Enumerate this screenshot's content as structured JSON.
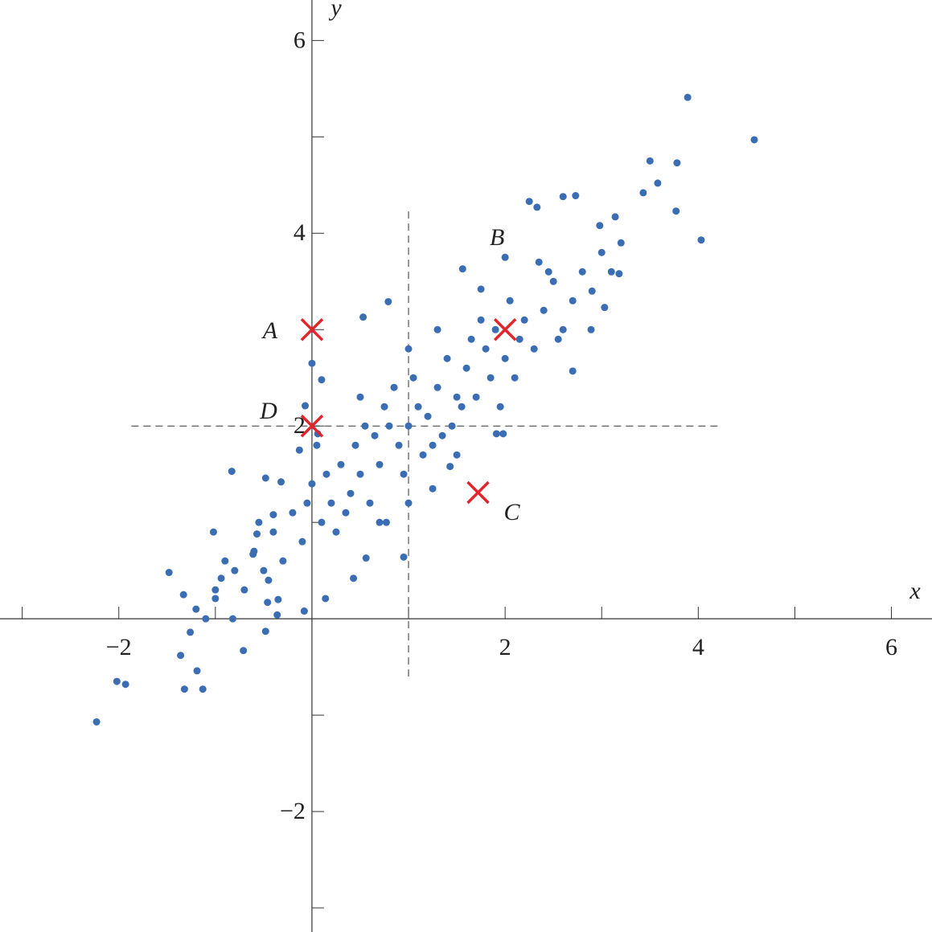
{
  "chart_data": {
    "type": "scatter",
    "x_label": "x",
    "y_label": "y",
    "xlim": [
      -3.23,
      6.42
    ],
    "ylim": [
      -3.25,
      6.42
    ],
    "xticks": [
      {
        "value": -2,
        "label": "−2"
      },
      2,
      4,
      6
    ],
    "xminor_ticks": [
      -3,
      -1,
      1,
      3,
      5
    ],
    "yticks": [
      {
        "value": -2,
        "label": "−2"
      },
      2,
      4,
      6
    ],
    "yminor_ticks": [
      -3,
      -1,
      1,
      3,
      5
    ],
    "color": "#3b6db3",
    "x": [
      -2.23,
      -2.02,
      -1.93,
      -1.32,
      -1.13,
      -1.36,
      -1.19,
      -1.26,
      -1.48,
      -1.33,
      -1.02,
      -0.83,
      -0.71,
      3.89,
      4.58,
      4.03,
      3.5,
      3.78,
      3.77,
      3.58,
      3.43,
      3.14,
      2.98,
      2.73,
      2.6,
      2.25,
      2.33,
      0.79,
      0.53,
      0,
      0.1,
      0.95,
      0.14,
      -0.08,
      2.7,
      2.89,
      1.56,
      2,
      1.75,
      3.18,
      3.03,
      1.91,
      1.98,
      1.43,
      1.25,
      0.77,
      0.56,
      0.43,
      -0.46,
      -0.36,
      -0.48,
      -0.82,
      -1,
      -0.94,
      -0.61,
      -0.57,
      -0.4,
      -0.32,
      -0.48,
      -0.13,
      -0.07,
      0.06,
      1,
      1.1,
      0.9,
      1.2,
      0.8,
      1.3,
      0.7,
      1.5,
      0.5,
      1.6,
      0.4,
      1.8,
      0.2,
      2.0,
      0.1,
      2.2,
      -0.1,
      2.4,
      -0.3,
      2.5,
      -0.5,
      2.7,
      -0.7,
      1.4,
      0.6,
      1.7,
      0.3,
      1.9,
      0.0,
      2.1,
      -0.2,
      2.3,
      -0.4,
      2.6,
      -0.6,
      2.8,
      -0.8,
      3.0,
      -1.0,
      1.05,
      0.95,
      1.25,
      0.75,
      1.45,
      0.55,
      1.65,
      0.35,
      1.85,
      0.15,
      2.05,
      -0.05,
      2.15,
      0.45,
      1.55,
      0.65,
      1.35,
      0.85,
      1.15,
      1.75,
      0.25,
      2.45,
      -0.45,
      3.2,
      -1.2,
      2.9,
      -0.9,
      1.0,
      1.0,
      0.5,
      1.5,
      2.35,
      -0.35,
      3.1,
      -1.1,
      1.95,
      0.05,
      2.55,
      -0.55,
      1.3,
      0.7
    ],
    "values": [
      -1.07,
      -0.65,
      -0.68,
      -0.73,
      -0.73,
      -0.38,
      -0.54,
      -0.14,
      0.48,
      0.25,
      0.9,
      1.53,
      -0.33,
      5.41,
      4.97,
      3.93,
      4.75,
      4.73,
      4.23,
      4.52,
      4.42,
      4.17,
      4.08,
      4.39,
      4.38,
      4.33,
      4.27,
      3.29,
      3.13,
      2.65,
      2.48,
      0.64,
      0.21,
      0.08,
      2.57,
      3.0,
      3.63,
      3.75,
      3.42,
      3.58,
      3.23,
      1.92,
      1.92,
      1.58,
      1.35,
      1.0,
      0.63,
      0.42,
      0.17,
      0.04,
      -0.13,
      0,
      0.21,
      0.42,
      0.67,
      0.88,
      1.08,
      1.42,
      1.46,
      1.75,
      2.21,
      1.92,
      2,
      2.2,
      1.8,
      2.1,
      2.0,
      2.4,
      1.6,
      2.3,
      1.5,
      2.6,
      1.3,
      2.8,
      1.2,
      2.7,
      1.0,
      3.1,
      0.8,
      3.2,
      0.6,
      3.5,
      0.5,
      3.3,
      0.3,
      2.7,
      1.2,
      2.3,
      1.6,
      3.0,
      1.4,
      2.5,
      1.1,
      2.8,
      0.9,
      3.0,
      0.7,
      3.6,
      0.5,
      3.8,
      0.3,
      2.5,
      1.5,
      1.8,
      2.2,
      2.0,
      2.0,
      2.9,
      1.1,
      2.5,
      1.5,
      3.3,
      1.2,
      2.9,
      1.8,
      2.2,
      1.9,
      1.9,
      2.4,
      1.7,
      3.1,
      0.9,
      3.6,
      0.4,
      3.9,
      0.1,
      3.4,
      0.6,
      2.8,
      1.2,
      2.3,
      1.7,
      3.7,
      0.2,
      3.6,
      0.0,
      2.2,
      1.8,
      2.9,
      1.0,
      3.0,
      1.0
    ],
    "markers": [
      {
        "label": "A",
        "x": 0,
        "y": 3
      },
      {
        "label": "B",
        "x": 2,
        "y": 3
      },
      {
        "label": "C",
        "x": 1.72,
        "y": 1.31
      },
      {
        "label": "D",
        "x": 0,
        "y": 2
      }
    ],
    "marker_color": "#e0262c",
    "vline": {
      "x": 1,
      "y_range": [
        -0.6,
        4.27
      ]
    },
    "hline": {
      "y": 2,
      "x_range": [
        -1.87,
        4.22
      ]
    }
  }
}
